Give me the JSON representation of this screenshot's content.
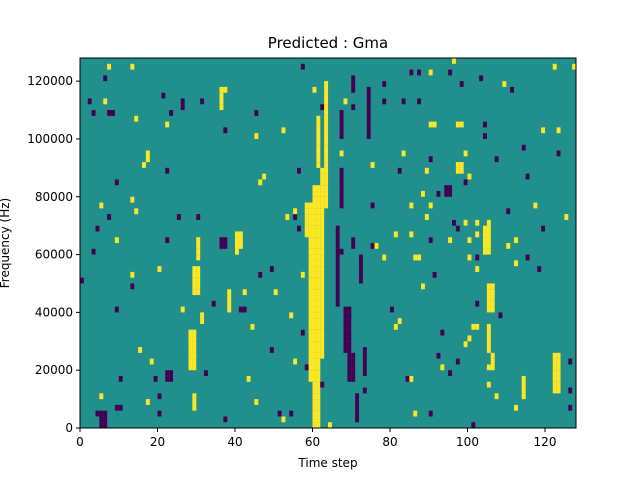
{
  "chart_data": {
    "type": "heatmap",
    "title": "Predicted : Gma",
    "xlabel": "Time step",
    "ylabel": "Frequency (Hz)",
    "xlim": [
      0,
      128
    ],
    "ylim": [
      0,
      128000
    ],
    "x_ticks": [
      0,
      20,
      40,
      60,
      80,
      100,
      120
    ],
    "x_tick_labels": [
      "0",
      "20",
      "40",
      "60",
      "80",
      "100",
      "120"
    ],
    "y_ticks": [
      0,
      20000,
      40000,
      60000,
      80000,
      100000,
      120000
    ],
    "y_tick_labels": [
      "0",
      "20000",
      "40000",
      "60000",
      "80000",
      "100000",
      "120000"
    ],
    "n_time_steps": 128,
    "n_freq_bins": 64,
    "colormap": {
      "low": "#440154",
      "mid": "#21908d",
      "high": "#fde725"
    },
    "background_value": 0,
    "value_encoding": "1 = high (yellow), -1 = low (purple), 0 = background (teal)",
    "marks": [
      {
        "t": [
          60,
          62
        ],
        "f": [
          0,
          84000
        ],
        "v": 1
      },
      {
        "t": [
          59,
          60
        ],
        "f": [
          16000,
          78000
        ],
        "v": 1
      },
      {
        "t": [
          62,
          63
        ],
        "f": [
          24000,
          90000
        ],
        "v": 1
      },
      {
        "t": [
          61,
          62
        ],
        "f": [
          90000,
          108000
        ],
        "v": 1
      },
      {
        "t": [
          63,
          64
        ],
        "f": [
          76000,
          120000
        ],
        "v": 1
      },
      {
        "t": [
          58,
          59
        ],
        "f": [
          66000,
          78000
        ],
        "v": 1
      },
      {
        "t": [
          28,
          30
        ],
        "f": [
          20000,
          34000
        ],
        "v": 1
      },
      {
        "t": [
          29,
          31
        ],
        "f": [
          46000,
          56000
        ],
        "v": 1
      },
      {
        "t": [
          30,
          31
        ],
        "f": [
          58000,
          66000
        ],
        "v": 1
      },
      {
        "t": [
          31,
          32
        ],
        "f": [
          36000,
          40000
        ],
        "v": 1
      },
      {
        "t": [
          104,
          106
        ],
        "f": [
          60000,
          70000
        ],
        "v": 1
      },
      {
        "t": [
          105,
          107
        ],
        "f": [
          40000,
          50000
        ],
        "v": 1
      },
      {
        "t": [
          105,
          106
        ],
        "f": [
          26000,
          36000
        ],
        "v": 1
      },
      {
        "t": [
          106,
          107
        ],
        "f": [
          20000,
          26000
        ],
        "v": 1
      },
      {
        "t": [
          114,
          115
        ],
        "f": [
          10000,
          18000
        ],
        "v": 1
      },
      {
        "t": [
          122,
          124
        ],
        "f": [
          12000,
          26000
        ],
        "v": 1
      },
      {
        "t": [
          97,
          99
        ],
        "f": [
          104000,
          106000
        ],
        "v": 1
      },
      {
        "t": [
          29,
          30
        ],
        "f": [
          6000,
          12000
        ],
        "v": 1
      },
      {
        "t": [
          40,
          42
        ],
        "f": [
          62000,
          68000
        ],
        "v": 1
      },
      {
        "t": [
          38,
          39
        ],
        "f": [
          40000,
          48000
        ],
        "v": 1
      },
      {
        "t": [
          36,
          37
        ],
        "f": [
          110000,
          118000
        ],
        "v": 1
      },
      {
        "t": [
          97,
          99
        ],
        "f": [
          88000,
          92000
        ],
        "v": 1
      },
      {
        "t": [
          68,
          70
        ],
        "f": [
          26000,
          42000
        ],
        "v": -1
      },
      {
        "t": [
          69,
          71
        ],
        "f": [
          16000,
          26000
        ],
        "v": -1
      },
      {
        "t": [
          66,
          67
        ],
        "f": [
          42000,
          70000
        ],
        "v": -1
      },
      {
        "t": [
          67,
          68
        ],
        "f": [
          76000,
          90000
        ],
        "v": -1
      },
      {
        "t": [
          70,
          71
        ],
        "f": [
          62000,
          66000
        ],
        "v": -1
      },
      {
        "t": [
          73,
          74
        ],
        "f": [
          18000,
          28000
        ],
        "v": -1
      },
      {
        "t": [
          72,
          73
        ],
        "f": [
          50000,
          60000
        ],
        "v": -1
      },
      {
        "t": [
          75,
          76
        ],
        "f": [
          62000,
          64000
        ],
        "v": -1
      },
      {
        "t": [
          67,
          68
        ],
        "f": [
          100000,
          110000
        ],
        "v": -1
      },
      {
        "t": [
          70,
          71
        ],
        "f": [
          116000,
          122000
        ],
        "v": -1
      },
      {
        "t": [
          74,
          75
        ],
        "f": [
          100000,
          118000
        ],
        "v": -1
      },
      {
        "t": [
          94,
          96
        ],
        "f": [
          80000,
          84000
        ],
        "v": -1
      },
      {
        "t": [
          22,
          24
        ],
        "f": [
          16000,
          20000
        ],
        "v": -1
      },
      {
        "t": [
          5,
          7
        ],
        "f": [
          0,
          6000
        ],
        "v": -1
      },
      {
        "t": [
          36,
          38
        ],
        "f": [
          62000,
          66000
        ],
        "v": -1
      },
      {
        "t": [
          71,
          72
        ],
        "f": [
          2000,
          12000
        ],
        "v": -1
      }
    ],
    "speckle_seed": 20240317,
    "speckle_density": 0.022
  }
}
